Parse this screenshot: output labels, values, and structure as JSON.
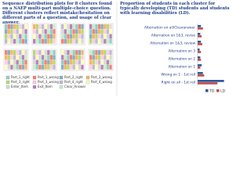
{
  "left_panel": {
    "title": "Sequence distribution plots for 8 clusters found on a NAEP multi-part multiple-choice question. Different clusters reflect mistake/hesitation on different parts of a question, and usage of clear answer.",
    "legend": [
      "Part_1_right",
      "Part_1_wrong",
      "Part_2_right",
      "Part_2_wrong",
      "Part_3_right",
      "Part_3_wrong",
      "Part_4_right",
      "Part_4_wrong",
      "Enter_Item",
      "Exit_Item",
      "Clear_Answer"
    ]
  },
  "right_panel": {
    "title": "Proportion of students in each cluster for typically developing (TD) students and students with learning disabilities (LD).",
    "chart": {
      "type": "bar",
      "orientation": "horizontal",
      "categories": [
        "Alternation on all/Clearanswer",
        "Alternation on 1&3, revise",
        "Alternation on 1&3, review",
        "Alternation on 3",
        "Alternation on 2",
        "Alternation on 1",
        "Wrong on 1 - 1st roll",
        "Right on all - 1st roll"
      ],
      "series": [
        {
          "name": "TD",
          "color": "#2f5597",
          "values": [
            0.05,
            0.04,
            0.05,
            0.03,
            0.04,
            0.06,
            0.08,
            0.4
          ]
        },
        {
          "name": "LD",
          "color": "#c0504d",
          "values": [
            0.08,
            0.06,
            0.07,
            0.05,
            0.05,
            0.04,
            0.1,
            0.3
          ]
        }
      ],
      "xlim": [
        0,
        0.5
      ]
    }
  }
}
